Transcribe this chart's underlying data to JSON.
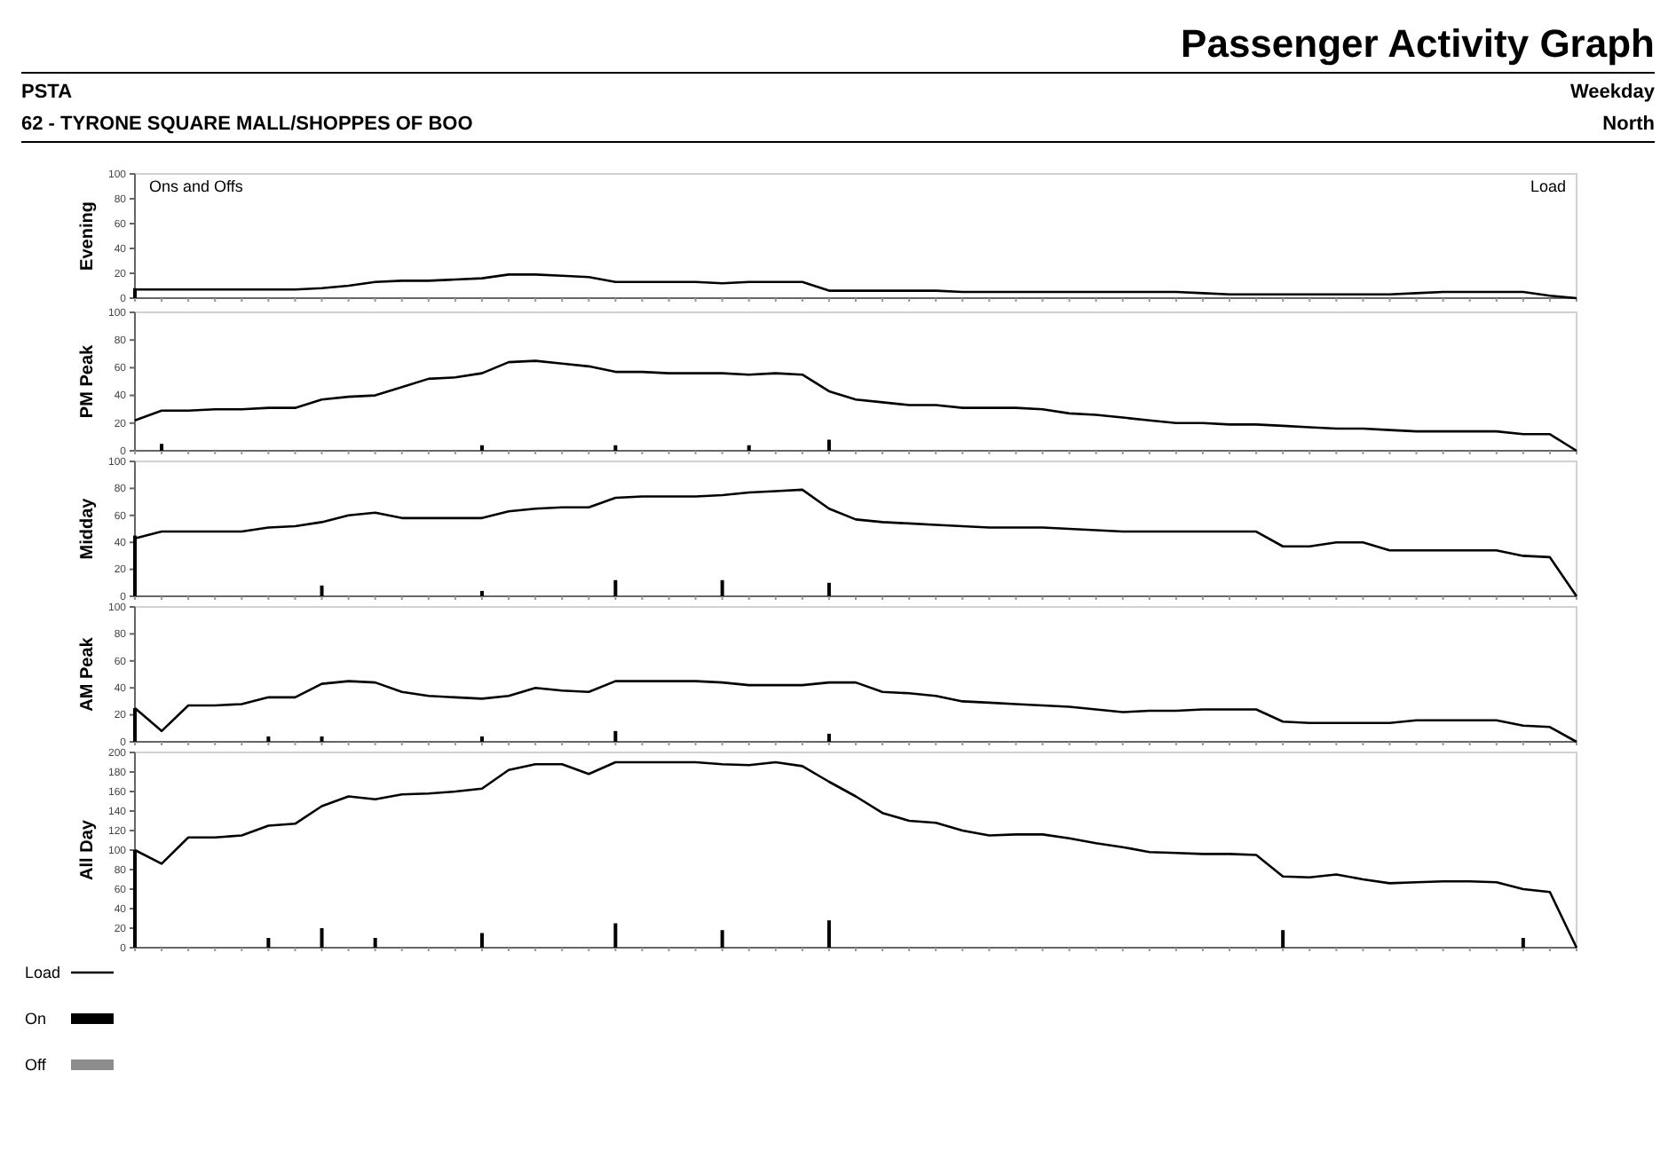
{
  "chart_data": [
    {
      "type": "line",
      "title": "Passenger Activity Graph",
      "subtitle": "PSTA",
      "annotations": [
        "62 - TYRONE SQUARE MALL/SHOPPES OF BOO",
        "Weekday",
        "North",
        "Ons and Offs",
        "Load"
      ],
      "ylabel": "Evening",
      "categories": [
        null,
        null,
        null,
        null,
        null,
        null,
        null,
        null,
        null,
        null,
        null,
        null,
        null,
        null,
        null,
        null,
        null,
        null,
        null,
        null,
        null,
        null,
        null,
        null,
        null,
        null,
        null,
        null,
        null,
        null,
        null,
        null,
        null,
        null,
        null,
        null,
        null,
        null,
        null,
        null,
        null,
        null,
        null,
        null,
        null,
        null,
        null,
        null,
        null,
        null,
        null,
        null,
        null,
        null,
        null
      ],
      "ylim": [
        0,
        100
      ],
      "yticks": [
        0,
        20,
        40,
        60,
        80,
        100
      ],
      "series": [
        {
          "color": "#000000",
          "values": [
            7,
            7,
            7,
            7,
            7,
            7,
            7,
            8,
            10,
            13,
            14,
            14,
            15,
            16,
            19,
            19,
            18,
            17,
            13,
            13,
            13,
            13,
            12,
            13,
            13,
            13,
            6,
            6,
            6,
            6,
            6,
            5,
            5,
            5,
            5,
            5,
            5,
            5,
            5,
            5,
            4,
            3,
            3,
            3,
            3,
            3,
            3,
            3,
            4,
            5,
            5,
            5,
            5,
            2,
            0
          ]
        },
        {
          "type": "bar",
          "color": "#000000",
          "values": [
            8,
            null,
            null,
            null,
            null,
            null,
            null,
            null,
            null,
            null,
            null,
            null,
            null,
            null,
            null,
            null,
            null,
            null,
            null,
            null,
            null,
            null,
            null,
            null,
            null,
            null,
            null,
            null,
            null,
            null,
            null,
            null,
            null,
            null,
            null,
            null,
            null,
            null,
            null,
            null,
            null,
            null,
            null,
            null,
            null,
            null,
            null,
            null,
            null,
            null,
            null,
            null,
            null,
            null,
            null
          ]
        }
      ]
    },
    {
      "type": "line",
      "ylabel": "PM Peak",
      "categories": [
        null,
        null,
        null,
        null,
        null,
        null,
        null,
        null,
        null,
        null,
        null,
        null,
        null,
        null,
        null,
        null,
        null,
        null,
        null,
        null,
        null,
        null,
        null,
        null,
        null,
        null,
        null,
        null,
        null,
        null,
        null,
        null,
        null,
        null,
        null,
        null,
        null,
        null,
        null,
        null,
        null,
        null,
        null,
        null,
        null,
        null,
        null,
        null,
        null,
        null,
        null,
        null,
        null,
        null,
        null
      ],
      "ylim": [
        0,
        100
      ],
      "yticks": [
        0,
        20,
        40,
        60,
        80,
        100
      ],
      "series": [
        {
          "color": "#000000",
          "values": [
            22,
            29,
            29,
            30,
            30,
            31,
            31,
            37,
            39,
            40,
            46,
            52,
            53,
            56,
            64,
            65,
            63,
            61,
            57,
            57,
            56,
            56,
            56,
            55,
            56,
            55,
            43,
            37,
            35,
            33,
            33,
            31,
            31,
            31,
            30,
            27,
            26,
            24,
            22,
            20,
            20,
            19,
            19,
            18,
            17,
            16,
            16,
            15,
            14,
            14,
            14,
            14,
            12,
            12,
            0
          ]
        },
        {
          "type": "bar",
          "color": "#000000",
          "values": [
            null,
            5,
            null,
            null,
            null,
            null,
            null,
            null,
            null,
            null,
            null,
            null,
            null,
            4,
            null,
            null,
            null,
            null,
            4,
            null,
            null,
            null,
            null,
            4,
            null,
            null,
            8,
            null,
            null,
            null,
            null,
            null,
            null,
            null,
            null,
            null,
            null,
            null,
            null,
            null,
            null,
            null,
            null,
            null,
            null,
            null,
            null,
            null,
            null,
            null,
            null,
            null,
            null,
            null,
            null
          ]
        }
      ]
    },
    {
      "type": "line",
      "ylabel": "Midday",
      "categories": [
        null,
        null,
        null,
        null,
        null,
        null,
        null,
        null,
        null,
        null,
        null,
        null,
        null,
        null,
        null,
        null,
        null,
        null,
        null,
        null,
        null,
        null,
        null,
        null,
        null,
        null,
        null,
        null,
        null,
        null,
        null,
        null,
        null,
        null,
        null,
        null,
        null,
        null,
        null,
        null,
        null,
        null,
        null,
        null,
        null,
        null,
        null,
        null,
        null,
        null,
        null,
        null,
        null,
        null,
        null
      ],
      "ylim": [
        0,
        100
      ],
      "yticks": [
        0,
        20,
        40,
        60,
        80,
        100
      ],
      "series": [
        {
          "color": "#000000",
          "values": [
            43,
            48,
            48,
            48,
            48,
            51,
            52,
            55,
            60,
            62,
            58,
            58,
            58,
            58,
            63,
            65,
            66,
            66,
            73,
            74,
            74,
            74,
            75,
            77,
            78,
            79,
            65,
            57,
            55,
            54,
            53,
            52,
            51,
            51,
            51,
            50,
            49,
            48,
            48,
            48,
            48,
            48,
            48,
            37,
            37,
            40,
            40,
            34,
            34,
            34,
            34,
            34,
            30,
            29,
            0
          ]
        },
        {
          "type": "bar",
          "color": "#000000",
          "values": [
            45,
            null,
            null,
            null,
            null,
            null,
            null,
            8,
            null,
            null,
            null,
            null,
            null,
            4,
            null,
            null,
            null,
            null,
            12,
            null,
            null,
            null,
            12,
            null,
            null,
            null,
            10,
            null,
            null,
            null,
            null,
            null,
            null,
            null,
            null,
            null,
            null,
            null,
            null,
            null,
            null,
            null,
            null,
            null,
            null,
            null,
            null,
            null,
            null,
            null,
            null,
            null,
            null,
            null,
            null
          ]
        }
      ]
    },
    {
      "type": "line",
      "ylabel": "AM Peak",
      "categories": [
        null,
        null,
        null,
        null,
        null,
        null,
        null,
        null,
        null,
        null,
        null,
        null,
        null,
        null,
        null,
        null,
        null,
        null,
        null,
        null,
        null,
        null,
        null,
        null,
        null,
        null,
        null,
        null,
        null,
        null,
        null,
        null,
        null,
        null,
        null,
        null,
        null,
        null,
        null,
        null,
        null,
        null,
        null,
        null,
        null,
        null,
        null,
        null,
        null,
        null,
        null,
        null,
        null,
        null,
        null
      ],
      "ylim": [
        0,
        100
      ],
      "yticks": [
        0,
        20,
        40,
        60,
        80,
        100
      ],
      "series": [
        {
          "color": "#000000",
          "values": [
            25,
            8,
            27,
            27,
            28,
            33,
            33,
            43,
            45,
            44,
            37,
            34,
            33,
            32,
            34,
            40,
            38,
            37,
            45,
            45,
            45,
            45,
            44,
            42,
            42,
            42,
            44,
            44,
            37,
            36,
            34,
            30,
            29,
            28,
            27,
            26,
            24,
            22,
            23,
            23,
            24,
            24,
            24,
            15,
            14,
            14,
            14,
            14,
            16,
            16,
            16,
            16,
            12,
            11,
            0
          ]
        },
        {
          "type": "bar",
          "color": "#000000",
          "values": [
            25,
            null,
            null,
            null,
            null,
            4,
            null,
            4,
            null,
            null,
            null,
            null,
            null,
            4,
            null,
            null,
            null,
            null,
            8,
            null,
            null,
            null,
            null,
            null,
            null,
            null,
            6,
            null,
            null,
            null,
            null,
            null,
            null,
            null,
            null,
            null,
            null,
            null,
            null,
            null,
            null,
            null,
            null,
            null,
            null,
            null,
            null,
            null,
            null,
            null,
            null,
            null,
            null,
            null,
            null
          ]
        }
      ]
    },
    {
      "type": "line",
      "ylabel": "All Day",
      "categories": [
        null,
        null,
        null,
        null,
        null,
        null,
        null,
        null,
        null,
        null,
        null,
        null,
        null,
        null,
        null,
        null,
        null,
        null,
        null,
        null,
        null,
        null,
        null,
        null,
        null,
        null,
        null,
        null,
        null,
        null,
        null,
        null,
        null,
        null,
        null,
        null,
        null,
        null,
        null,
        null,
        null,
        null,
        null,
        null,
        null,
        null,
        null,
        null,
        null,
        null,
        null,
        null,
        null,
        null,
        null
      ],
      "ylim": [
        0,
        200
      ],
      "yticks": [
        0,
        20,
        40,
        60,
        80,
        100,
        120,
        140,
        160,
        180,
        200
      ],
      "legend": "bottom left",
      "series": [
        {
          "name": "Load",
          "color": "#000000",
          "values": [
            100,
            86,
            113,
            113,
            115,
            125,
            127,
            145,
            155,
            152,
            157,
            158,
            160,
            163,
            182,
            188,
            188,
            178,
            190,
            190,
            190,
            190,
            188,
            187,
            190,
            186,
            170,
            155,
            138,
            130,
            128,
            120,
            115,
            116,
            116,
            112,
            107,
            103,
            98,
            97,
            96,
            96,
            95,
            73,
            72,
            75,
            70,
            66,
            67,
            68,
            68,
            67,
            60,
            57,
            0
          ]
        },
        {
          "name": "On",
          "type": "bar",
          "color": "#000000",
          "values": [
            100,
            null,
            null,
            null,
            null,
            10,
            null,
            20,
            null,
            10,
            null,
            null,
            null,
            15,
            null,
            null,
            null,
            null,
            25,
            null,
            null,
            null,
            18,
            null,
            null,
            null,
            28,
            null,
            null,
            null,
            null,
            null,
            null,
            null,
            null,
            null,
            null,
            null,
            null,
            null,
            null,
            null,
            null,
            18,
            null,
            null,
            null,
            null,
            null,
            null,
            null,
            null,
            10,
            null,
            null
          ]
        },
        {
          "name": "Off",
          "type": "bar",
          "color": "#8c8c8c",
          "values": [
            null,
            null,
            null,
            null,
            null,
            null,
            null,
            null,
            null,
            null,
            null,
            null,
            null,
            null,
            null,
            null,
            null,
            null,
            null,
            null,
            null,
            null,
            null,
            null,
            null,
            null,
            null,
            null,
            null,
            null,
            null,
            null,
            null,
            null,
            null,
            null,
            null,
            null,
            null,
            null,
            null,
            null,
            null,
            null,
            null,
            null,
            null,
            null,
            null,
            null,
            null,
            null,
            null,
            null,
            null
          ]
        }
      ]
    }
  ]
}
